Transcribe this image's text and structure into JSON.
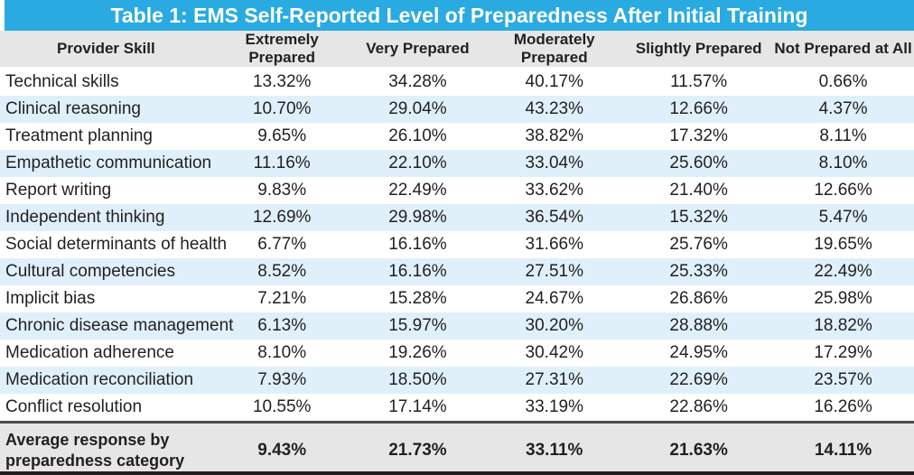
{
  "chart_data": {
    "type": "table",
    "title": "Table 1: EMS Self-Reported Level of Preparedness After Initial Training",
    "columns": [
      "Provider Skill",
      "Extremely Prepared",
      "Very Prepared",
      "Moderately Prepared",
      "Slightly Prepared",
      "Not Prepared at All"
    ],
    "rows": [
      {
        "skill": "Technical skills",
        "values": [
          "13.32%",
          "34.28%",
          "40.17%",
          "11.57%",
          "0.66%"
        ]
      },
      {
        "skill": "Clinical reasoning",
        "values": [
          "10.70%",
          "29.04%",
          "43.23%",
          "12.66%",
          "4.37%"
        ]
      },
      {
        "skill": "Treatment planning",
        "values": [
          "9.65%",
          "26.10%",
          "38.82%",
          "17.32%",
          "8.11%"
        ]
      },
      {
        "skill": "Empathetic communication",
        "values": [
          "11.16%",
          "22.10%",
          "33.04%",
          "25.60%",
          "8.10%"
        ]
      },
      {
        "skill": "Report writing",
        "values": [
          "9.83%",
          "22.49%",
          "33.62%",
          "21.40%",
          "12.66%"
        ]
      },
      {
        "skill": "Independent thinking",
        "values": [
          "12.69%",
          "29.98%",
          "36.54%",
          "15.32%",
          "5.47%"
        ]
      },
      {
        "skill": "Social determinants of health",
        "values": [
          "6.77%",
          "16.16%",
          "31.66%",
          "25.76%",
          "19.65%"
        ]
      },
      {
        "skill": "Cultural competencies",
        "values": [
          "8.52%",
          "16.16%",
          "27.51%",
          "25.33%",
          "22.49%"
        ]
      },
      {
        "skill": "Implicit bias",
        "values": [
          "7.21%",
          "15.28%",
          "24.67%",
          "26.86%",
          "25.98%"
        ]
      },
      {
        "skill": "Chronic disease management",
        "values": [
          "6.13%",
          "15.97%",
          "30.20%",
          "28.88%",
          "18.82%"
        ]
      },
      {
        "skill": "Medication adherence",
        "values": [
          "8.10%",
          "19.26%",
          "30.42%",
          "24.95%",
          "17.29%"
        ]
      },
      {
        "skill": "Medication reconciliation",
        "values": [
          "7.93%",
          "18.50%",
          "27.31%",
          "22.69%",
          "23.57%"
        ]
      },
      {
        "skill": "Conflict resolution",
        "values": [
          "10.55%",
          "17.14%",
          "33.19%",
          "22.86%",
          "16.26%"
        ]
      }
    ],
    "footer": {
      "label": "Average response by preparedness category",
      "values": [
        "9.43%",
        "21.73%",
        "33.11%",
        "21.63%",
        "14.11%"
      ]
    },
    "layout": {
      "zebra_striping": true,
      "column_widths_pct": [
        23.2,
        15.3,
        14.4,
        15.5,
        16.1,
        15.5
      ]
    },
    "colors": {
      "title_bar": "#29ABE2",
      "title_text": "#FFFFFF",
      "header_band": "#E6E6E6",
      "alt_row": "#DFF0FA",
      "footer_band": "#E6E6E6",
      "footer_rule": "#4D4D4D",
      "bottom_border": "#231F20",
      "text": "#231F20"
    }
  }
}
